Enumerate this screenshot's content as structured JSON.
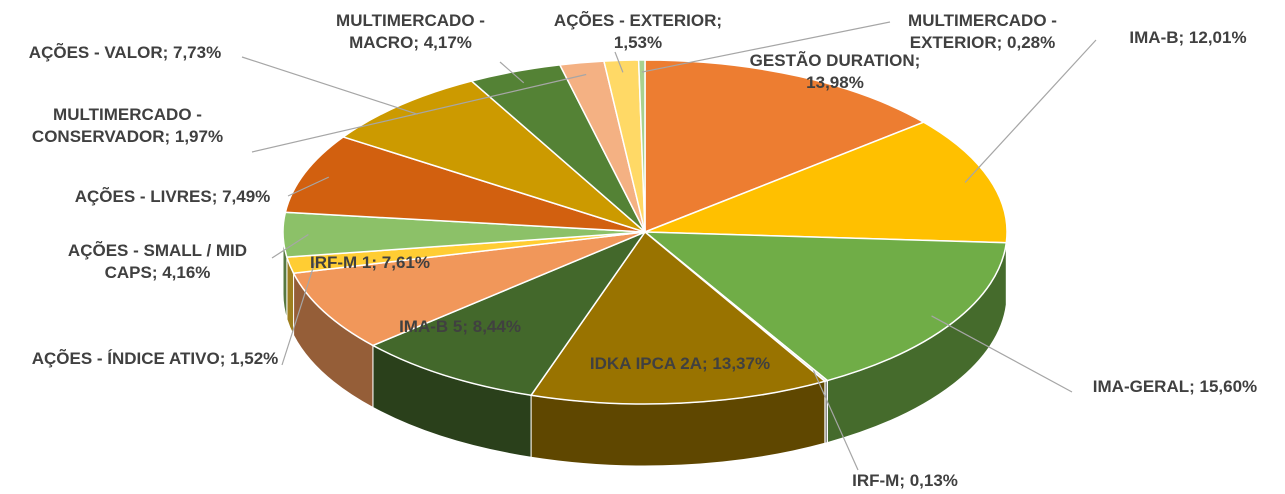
{
  "chart_data": {
    "type": "pie3d",
    "label_separator": "; ",
    "categories": [
      "GESTÃO DURATION",
      "IMA-B",
      "IMA-GERAL",
      "IRF-M",
      "IDKA IPCA 2A",
      "IMA-B 5",
      "IRF-M 1",
      "AÇÕES - ÍNDICE ATIVO",
      "AÇÕES - SMALL / MID CAPS",
      "AÇÕES - LIVRES",
      "AÇÕES - VALOR",
      "MULTIMERCADO - MACRO",
      "MULTIMERCADO - CONSERVADOR",
      "AÇÕES - EXTERIOR",
      "MULTIMERCADO - EXTERIOR"
    ],
    "values": [
      13.98,
      12.01,
      15.6,
      0.13,
      13.37,
      8.44,
      7.61,
      1.52,
      4.16,
      7.49,
      7.73,
      4.17,
      1.97,
      1.53,
      0.28
    ],
    "value_labels": [
      "13,98%",
      "12,01%",
      "15,60%",
      "0,13%",
      "13,37%",
      "8,44%",
      "7,61%",
      "1,52%",
      "4,16%",
      "7,49%",
      "7,73%",
      "4,17%",
      "1,97%",
      "1,53%",
      "0,28%"
    ],
    "colors": [
      "#ED7D31",
      "#FFC000",
      "#70AD47",
      "#D9D9D9",
      "#997300",
      "#43682B",
      "#F1975A",
      "#FFCD33",
      "#8CC168",
      "#D2600F",
      "#CC9A00",
      "#548235",
      "#F4B183",
      "#FFD966",
      "#A9D18E"
    ]
  }
}
